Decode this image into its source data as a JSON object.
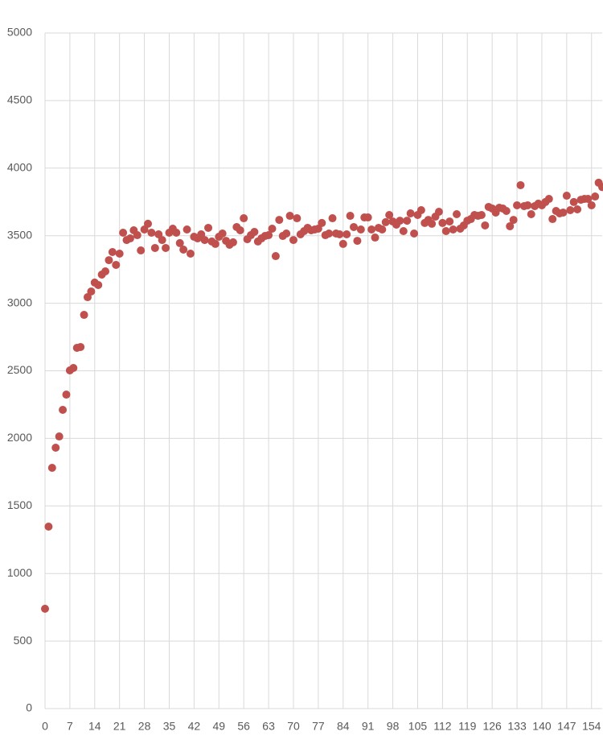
{
  "chart_data": {
    "type": "scatter",
    "x": [
      0,
      1,
      2,
      3,
      4,
      5,
      6,
      7,
      8,
      9,
      10,
      11,
      12,
      13,
      14,
      15,
      16,
      17,
      18,
      19,
      20,
      21,
      22,
      23,
      24,
      25,
      26,
      27,
      28,
      29,
      30,
      31,
      32,
      33,
      34,
      35,
      36,
      37,
      38,
      39,
      40,
      41,
      42,
      43,
      44,
      45,
      46,
      47,
      48,
      49,
      50,
      51,
      52,
      53,
      54,
      55,
      56,
      57,
      58,
      59,
      60,
      61,
      62,
      63,
      64,
      65,
      66,
      67,
      68,
      69,
      70,
      71,
      72,
      73,
      74,
      75,
      76,
      77,
      78,
      79,
      80,
      81,
      82,
      83,
      84,
      85,
      86,
      87,
      88,
      89,
      90,
      91,
      92,
      93,
      94,
      95,
      96,
      97,
      98,
      99,
      100,
      101,
      102,
      103,
      104,
      105,
      106,
      107,
      108,
      109,
      110,
      111,
      112,
      113,
      114,
      115,
      116,
      117,
      118,
      119,
      120,
      121,
      122,
      123,
      124,
      125,
      126,
      127,
      128,
      129,
      130,
      131,
      132,
      133,
      134,
      135,
      136,
      137,
      138,
      139,
      140,
      141,
      142,
      143,
      144,
      145,
      146,
      147,
      148,
      149,
      150,
      151,
      152,
      153,
      154,
      155,
      156,
      157
    ],
    "values": [
      739,
      1347,
      1782,
      1931,
      2014,
      2211,
      2324,
      2503,
      2521,
      2670,
      2676,
      2914,
      3045,
      3087,
      3153,
      3135,
      3212,
      3236,
      3319,
      3379,
      3284,
      3367,
      3522,
      3468,
      3480,
      3540,
      3504,
      3391,
      3546,
      3588,
      3522,
      3409,
      3510,
      3468,
      3409,
      3522,
      3552,
      3522,
      3445,
      3397,
      3546,
      3367,
      3492,
      3480,
      3510,
      3468,
      3558,
      3457,
      3439,
      3492,
      3516,
      3462,
      3433,
      3451,
      3564,
      3540,
      3629,
      3474,
      3504,
      3528,
      3457,
      3480,
      3498,
      3504,
      3552,
      3349,
      3617,
      3498,
      3516,
      3647,
      3468,
      3629,
      3510,
      3534,
      3558,
      3540,
      3546,
      3552,
      3594,
      3504,
      3516,
      3629,
      3516,
      3510,
      3439,
      3510,
      3647,
      3564,
      3462,
      3546,
      3635,
      3635,
      3546,
      3486,
      3558,
      3546,
      3600,
      3653,
      3605,
      3582,
      3611,
      3534,
      3611,
      3665,
      3516,
      3653,
      3689,
      3594,
      3617,
      3588,
      3641,
      3677,
      3594,
      3534,
      3605,
      3546,
      3659,
      3552,
      3576,
      3611,
      3623,
      3653,
      3647,
      3653,
      3576,
      3713,
      3701,
      3671,
      3707,
      3701,
      3683,
      3570,
      3617,
      3725,
      3874,
      3719,
      3725,
      3659,
      3719,
      3737,
      3725,
      3749,
      3772,
      3623,
      3683,
      3665,
      3671,
      3796,
      3689,
      3749,
      3695,
      3766,
      3772,
      3772,
      3725,
      3790,
      3892,
      3860
    ],
    "color": "#c0504d",
    "xlim": [
      0,
      157
    ],
    "xticks": [
      0,
      7,
      14,
      21,
      28,
      35,
      42,
      49,
      56,
      63,
      70,
      77,
      84,
      91,
      98,
      105,
      112,
      119,
      126,
      133,
      140,
      147,
      154
    ],
    "ylim": [
      0,
      5000
    ],
    "yticks": [
      0,
      500,
      1000,
      1500,
      2000,
      2500,
      3000,
      3500,
      4000,
      4500,
      5000
    ],
    "grid": true
  }
}
